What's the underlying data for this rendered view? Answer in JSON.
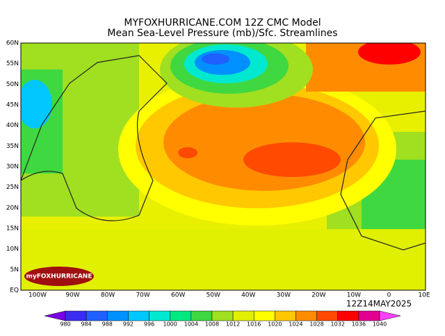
{
  "header": {
    "title": "MYFOXHURRICANE.COM 12Z CMC Model",
    "subtitle": "Mean Sea-Level Pressure (mb)/Sfc. Streamlines"
  },
  "map": {
    "lat_labels": [
      "60N",
      "55N",
      "50N",
      "45N",
      "40N",
      "35N",
      "30N",
      "25N",
      "20N",
      "15N",
      "10N",
      "5N",
      "EQ"
    ],
    "lon_labels": [
      "100W",
      "90W",
      "80W",
      "70W",
      "60W",
      "50W",
      "40W",
      "30W",
      "20W",
      "10W",
      "0",
      "10E"
    ],
    "valid_time": "12Z14MAY2025",
    "logo": "myFOXHURRICANE"
  },
  "colorbar": {
    "labels": [
      "980",
      "984",
      "988",
      "992",
      "996",
      "1000",
      "1004",
      "1008",
      "1012",
      "1016",
      "1020",
      "1024",
      "1028",
      "1032",
      "1036",
      "1040"
    ],
    "colors": [
      "#7a00e6",
      "#3a2cf0",
      "#2060ff",
      "#0090ff",
      "#00c8ff",
      "#00e8d0",
      "#00e880",
      "#40d840",
      "#a0e020",
      "#e0f000",
      "#ffff00",
      "#ffc800",
      "#ff8c00",
      "#ff4a00",
      "#ff0000",
      "#e00090",
      "#ff40ff"
    ]
  }
}
